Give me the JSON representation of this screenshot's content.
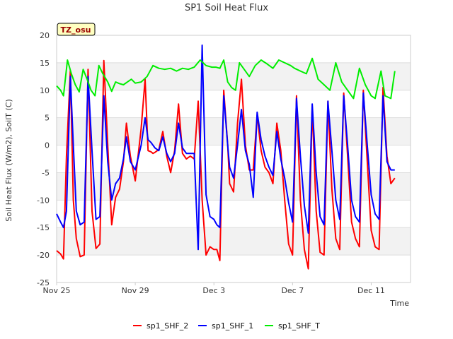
{
  "chart_data": {
    "type": "line",
    "title": "SP1 Soil Heat Flux",
    "xlabel": "Time",
    "ylabel": "Soil Heat Flux (W/m2), SoilT (C)",
    "badge": "TZ_osu",
    "ylim": [
      -25,
      20
    ],
    "y_ticks": [
      -25,
      -20,
      -15,
      -10,
      -5,
      0,
      5,
      10,
      15,
      20
    ],
    "x_unit": "days from Nov 25",
    "xlim": [
      0,
      18
    ],
    "x_ticks": [
      {
        "x": 0,
        "label": "Nov 25"
      },
      {
        "x": 4,
        "label": "Nov 29"
      },
      {
        "x": 8,
        "label": "Dec 3"
      },
      {
        "x": 12,
        "label": "Dec 7"
      },
      {
        "x": 16,
        "label": "Dec 11"
      }
    ],
    "grid": true,
    "legend_position": "bottom",
    "colors": {
      "sp1_SHF_2": "#ff0000",
      "sp1_SHF_1": "#0000ff",
      "sp1_SHF_T": "#00ee00"
    },
    "series": [
      {
        "name": "sp1_SHF_2",
        "color": "#ff0000",
        "x": [
          0.0,
          0.2,
          0.35,
          0.5,
          0.7,
          0.85,
          1.0,
          1.2,
          1.4,
          1.6,
          1.8,
          2.0,
          2.2,
          2.4,
          2.6,
          2.8,
          3.0,
          3.2,
          3.4,
          3.55,
          3.75,
          4.0,
          4.3,
          4.5,
          4.65,
          4.8,
          4.9,
          5.0,
          5.2,
          5.4,
          5.6,
          5.8,
          6.0,
          6.2,
          6.4,
          6.6,
          6.8,
          7.0,
          7.2,
          7.4,
          7.6,
          7.8,
          8.0,
          8.15,
          8.3,
          8.5,
          8.7,
          8.8,
          9.0,
          9.2,
          9.4,
          9.6,
          9.8,
          10.0,
          10.2,
          10.4,
          10.6,
          10.8,
          11.0,
          11.2,
          11.4,
          11.6,
          11.8,
          12.0,
          12.2,
          12.4,
          12.6,
          12.8,
          13.0,
          13.2,
          13.4,
          13.6,
          13.8,
          14.0,
          14.2,
          14.4,
          14.6,
          14.8,
          15.0,
          15.2,
          15.4,
          15.6,
          15.8,
          16.0,
          16.2,
          16.4,
          16.6,
          16.8,
          17.0,
          17.2
        ],
        "y": [
          -19.2,
          -19.8,
          -20.7,
          -2.0,
          13.6,
          -10.0,
          -17.0,
          -20.3,
          -20.0,
          13.8,
          -12.0,
          -18.8,
          -18.0,
          15.4,
          0.0,
          -14.5,
          -9.5,
          -8.0,
          -3.0,
          4.0,
          -2.0,
          -6.5,
          3.0,
          12.0,
          -1.0,
          -1.2,
          -1.5,
          -1.3,
          -0.8,
          2.5,
          -2.0,
          -5.0,
          -1.0,
          7.5,
          -1.5,
          -2.5,
          -2.0,
          -2.5,
          8.0,
          -10.0,
          -20.0,
          -18.5,
          -19.0,
          -19.0,
          -21.0,
          10.0,
          0.0,
          -7.0,
          -8.5,
          4.0,
          12.0,
          0.0,
          -4.5,
          -4.5,
          5.5,
          -1.0,
          -4.0,
          -5.0,
          -7.0,
          4.0,
          -1.0,
          -10.0,
          -18.0,
          -20.0,
          9.0,
          -10.0,
          -19.0,
          -22.5,
          7.0,
          -12.0,
          -19.5,
          -20.0,
          8.0,
          -8.0,
          -17.0,
          -19.0,
          9.5,
          -2.0,
          -14.0,
          -17.0,
          -18.5,
          10.0,
          -3.0,
          -15.5,
          -18.5,
          -19.0,
          10.5,
          -2.0,
          -7.0,
          -6.0
        ]
      },
      {
        "name": "sp1_SHF_1",
        "color": "#0000ff",
        "x": [
          0.0,
          0.2,
          0.35,
          0.5,
          0.7,
          0.85,
          1.0,
          1.2,
          1.4,
          1.6,
          1.8,
          2.0,
          2.2,
          2.4,
          2.6,
          2.8,
          3.0,
          3.2,
          3.4,
          3.55,
          3.75,
          4.0,
          4.3,
          4.5,
          4.65,
          4.8,
          4.9,
          5.0,
          5.2,
          5.4,
          5.6,
          5.8,
          6.0,
          6.2,
          6.4,
          6.6,
          6.8,
          7.0,
          7.2,
          7.4,
          7.6,
          7.8,
          8.0,
          8.15,
          8.3,
          8.5,
          8.7,
          8.8,
          9.0,
          9.2,
          9.4,
          9.6,
          9.8,
          10.0,
          10.2,
          10.4,
          10.6,
          10.8,
          11.0,
          11.2,
          11.4,
          11.6,
          11.8,
          12.0,
          12.2,
          12.4,
          12.6,
          12.8,
          13.0,
          13.2,
          13.4,
          13.6,
          13.8,
          14.0,
          14.2,
          14.4,
          14.6,
          14.8,
          15.0,
          15.2,
          15.4,
          15.6,
          15.8,
          16.0,
          16.2,
          16.4,
          16.6,
          16.8,
          17.0,
          17.2
        ],
        "y": [
          -12.5,
          -14.0,
          -15.0,
          -12.0,
          12.5,
          0.0,
          -12.0,
          -14.5,
          -14.0,
          12.5,
          -1.0,
          -13.5,
          -13.0,
          9.0,
          -3.0,
          -10.0,
          -7.0,
          -6.0,
          -2.5,
          1.5,
          -3.0,
          -4.5,
          0.0,
          5.0,
          1.0,
          0.5,
          0.0,
          -0.5,
          -1.0,
          1.5,
          -1.5,
          -3.0,
          -1.5,
          4.0,
          -0.5,
          -1.5,
          -1.5,
          -1.5,
          -19.0,
          18.2,
          -9.0,
          -13.0,
          -13.5,
          -14.5,
          -15.0,
          9.0,
          0.0,
          -4.0,
          -6.0,
          0.0,
          6.5,
          -1.0,
          -3.5,
          -9.5,
          6.0,
          1.0,
          -2.0,
          -4.0,
          -5.5,
          2.5,
          -2.5,
          -6.0,
          -10.5,
          -14.0,
          8.5,
          -2.0,
          -11.0,
          -16.0,
          7.5,
          -5.0,
          -13.0,
          -14.5,
          8.0,
          -1.0,
          -10.0,
          -13.5,
          9.0,
          0.0,
          -10.0,
          -13.0,
          -14.0,
          9.5,
          0.0,
          -9.0,
          -12.5,
          -13.5,
          9.0,
          -3.0,
          -4.5,
          -4.5
        ]
      },
      {
        "name": "sp1_SHF_T",
        "color": "#00ee00",
        "x": [
          0.0,
          0.2,
          0.35,
          0.55,
          0.75,
          0.95,
          1.15,
          1.35,
          1.55,
          1.75,
          1.95,
          2.15,
          2.35,
          2.6,
          2.8,
          3.0,
          3.2,
          3.4,
          3.6,
          3.8,
          4.0,
          4.3,
          4.6,
          4.9,
          5.2,
          5.5,
          5.8,
          6.1,
          6.4,
          6.7,
          7.0,
          7.3,
          7.6,
          7.9,
          8.1,
          8.3,
          8.5,
          8.7,
          8.9,
          9.1,
          9.3,
          9.5,
          9.8,
          10.1,
          10.4,
          10.7,
          11.0,
          11.3,
          11.6,
          11.9,
          12.1,
          12.4,
          12.7,
          13.0,
          13.3,
          13.6,
          13.9,
          14.2,
          14.5,
          14.8,
          15.1,
          15.4,
          15.7,
          16.0,
          16.2,
          16.5,
          16.7,
          17.0,
          17.2
        ],
        "y": [
          10.8,
          10.0,
          9.0,
          15.5,
          13.0,
          11.0,
          9.7,
          13.8,
          12.0,
          10.0,
          9.0,
          14.5,
          13.0,
          11.5,
          9.8,
          11.5,
          11.2,
          11.0,
          11.5,
          12.0,
          11.3,
          11.5,
          12.5,
          14.5,
          14.0,
          13.8,
          14.0,
          13.5,
          14.0,
          13.8,
          14.2,
          15.5,
          14.5,
          14.2,
          14.2,
          14.0,
          15.5,
          11.5,
          10.5,
          10.0,
          15.0,
          14.0,
          12.5,
          14.5,
          15.5,
          14.8,
          14.0,
          15.5,
          15.0,
          14.5,
          14.0,
          13.5,
          13.0,
          15.8,
          12.0,
          11.0,
          10.0,
          15.0,
          11.5,
          10.0,
          8.5,
          14.0,
          11.0,
          9.0,
          8.5,
          13.5,
          9.0,
          8.5,
          13.5
        ]
      }
    ]
  }
}
